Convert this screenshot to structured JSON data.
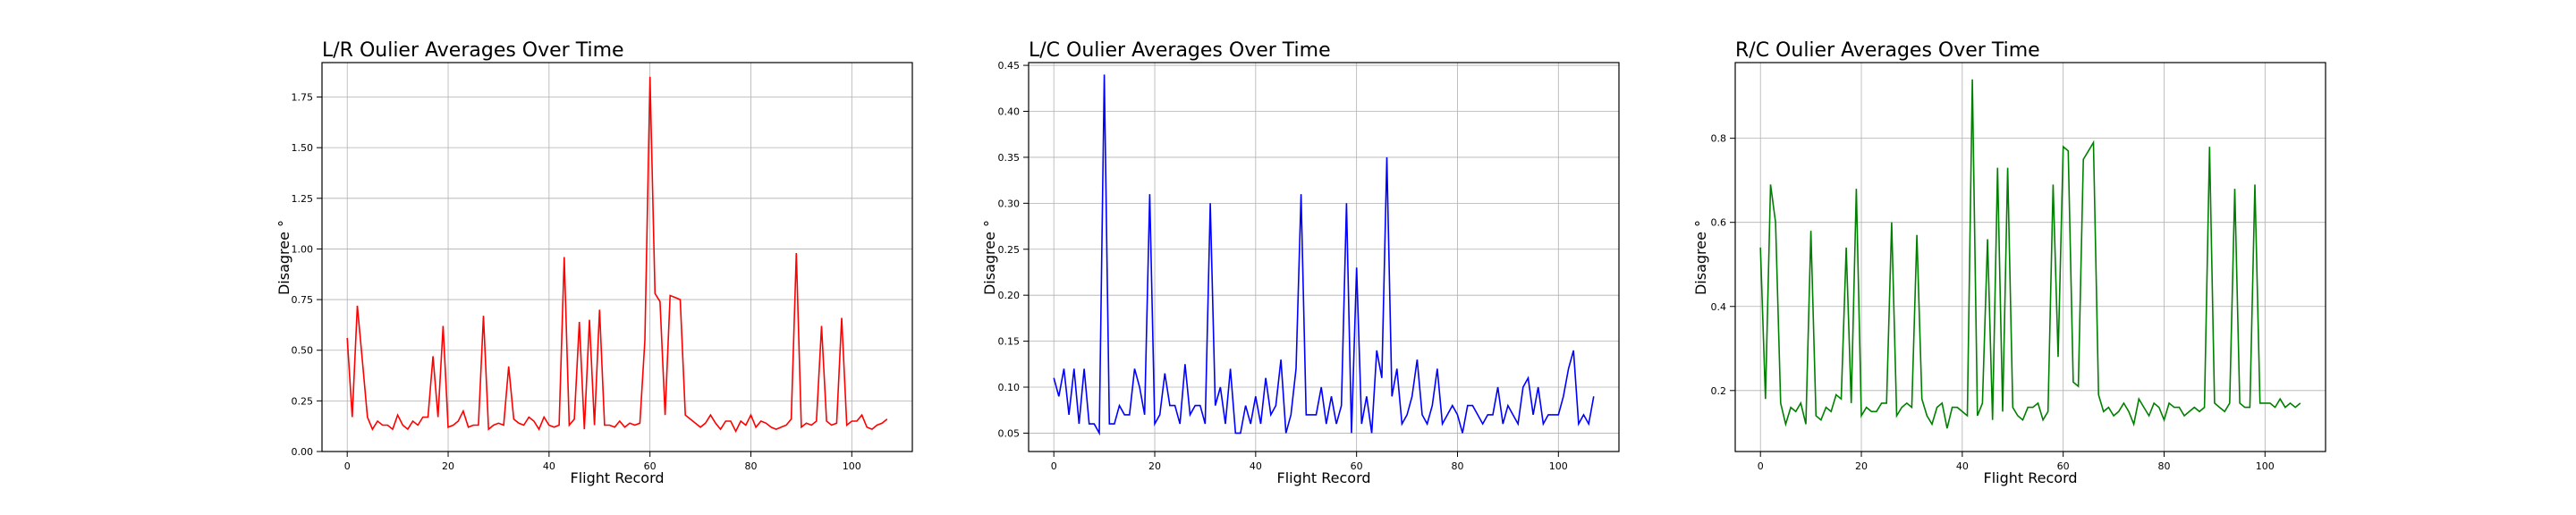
{
  "chart_data": [
    {
      "type": "line",
      "title": "L/R Oulier Averages Over Time",
      "xlabel": "Flight Record",
      "ylabel": "Disagree °",
      "xlim": [
        -5,
        112
      ],
      "ylim": [
        0,
        1.92
      ],
      "xticks": [
        0,
        20,
        40,
        60,
        80,
        100
      ],
      "yticks": [
        "0.00",
        "0.25",
        "0.50",
        "0.75",
        "1.00",
        "1.25",
        "1.50",
        "1.75"
      ],
      "grid": true,
      "legend": "none",
      "series": [
        {
          "color": "#ff0000",
          "x": [
            0,
            1,
            2,
            3,
            4,
            5,
            6,
            7,
            8,
            9,
            10,
            11,
            12,
            13,
            14,
            15,
            16,
            17,
            18,
            19,
            20,
            21,
            22,
            23,
            24,
            25,
            26,
            27,
            28,
            29,
            30,
            31,
            32,
            33,
            34,
            35,
            36,
            37,
            38,
            39,
            40,
            41,
            42,
            43,
            44,
            45,
            46,
            47,
            48,
            49,
            50,
            51,
            52,
            53,
            54,
            55,
            56,
            57,
            58,
            59,
            60,
            61,
            62,
            63,
            64,
            65,
            66,
            67,
            68,
            69,
            70,
            71,
            72,
            73,
            74,
            75,
            76,
            77,
            78,
            79,
            80,
            81,
            82,
            83,
            84,
            85,
            86,
            87,
            88,
            89,
            90,
            91,
            92,
            93,
            94,
            95,
            96,
            97,
            98,
            99,
            100,
            101,
            102,
            103,
            104,
            105,
            106,
            107
          ],
          "y": [
            0.56,
            0.17,
            0.72,
            0.45,
            0.17,
            0.11,
            0.15,
            0.13,
            0.13,
            0.11,
            0.18,
            0.13,
            0.11,
            0.15,
            0.13,
            0.17,
            0.17,
            0.47,
            0.17,
            0.62,
            0.12,
            0.13,
            0.15,
            0.2,
            0.12,
            0.13,
            0.13,
            0.67,
            0.11,
            0.13,
            0.14,
            0.13,
            0.42,
            0.16,
            0.14,
            0.13,
            0.17,
            0.15,
            0.11,
            0.17,
            0.13,
            0.12,
            0.13,
            0.96,
            0.13,
            0.16,
            0.64,
            0.11,
            0.65,
            0.13,
            0.7,
            0.13,
            0.13,
            0.12,
            0.15,
            0.12,
            0.14,
            0.13,
            0.14,
            0.55,
            1.85,
            0.78,
            0.74,
            0.18,
            0.77,
            0.76,
            0.75,
            0.18,
            0.16,
            0.14,
            0.12,
            0.14,
            0.18,
            0.14,
            0.11,
            0.15,
            0.15,
            0.1,
            0.15,
            0.13,
            0.18,
            0.12,
            0.15,
            0.14,
            0.12,
            0.11,
            0.12,
            0.13,
            0.16,
            0.98,
            0.12,
            0.14,
            0.13,
            0.15,
            0.62,
            0.15,
            0.13,
            0.14,
            0.66,
            0.13,
            0.15,
            0.15,
            0.18,
            0.12,
            0.11,
            0.13,
            0.14,
            0.16
          ]
        }
      ]
    },
    {
      "type": "line",
      "title": "L/C Oulier Averages Over Time",
      "xlabel": "Flight Record",
      "ylabel": "Disagree °",
      "xlim": [
        -5,
        112
      ],
      "ylim": [
        0.03,
        0.453
      ],
      "xticks": [
        0,
        20,
        40,
        60,
        80,
        100
      ],
      "yticks": [
        "0.05",
        "0.10",
        "0.15",
        "0.20",
        "0.25",
        "0.30",
        "0.35",
        "0.40",
        "0.45"
      ],
      "grid": true,
      "legend": "none",
      "series": [
        {
          "color": "#0000ff",
          "x": [
            0,
            1,
            2,
            3,
            4,
            5,
            6,
            7,
            8,
            9,
            10,
            11,
            12,
            13,
            14,
            15,
            16,
            17,
            18,
            19,
            20,
            21,
            22,
            23,
            24,
            25,
            26,
            27,
            28,
            29,
            30,
            31,
            32,
            33,
            34,
            35,
            36,
            37,
            38,
            39,
            40,
            41,
            42,
            43,
            44,
            45,
            46,
            47,
            48,
            49,
            50,
            51,
            52,
            53,
            54,
            55,
            56,
            57,
            58,
            59,
            60,
            61,
            62,
            63,
            64,
            65,
            66,
            67,
            68,
            69,
            70,
            71,
            72,
            73,
            74,
            75,
            76,
            77,
            78,
            79,
            80,
            81,
            82,
            83,
            84,
            85,
            86,
            87,
            88,
            89,
            90,
            91,
            92,
            93,
            94,
            95,
            96,
            97,
            98,
            99,
            100,
            101,
            102,
            103,
            104,
            105,
            106,
            107
          ],
          "y": [
            0.11,
            0.09,
            0.12,
            0.07,
            0.12,
            0.06,
            0.12,
            0.06,
            0.06,
            0.05,
            0.44,
            0.06,
            0.06,
            0.08,
            0.07,
            0.07,
            0.12,
            0.1,
            0.07,
            0.31,
            0.06,
            0.07,
            0.115,
            0.08,
            0.08,
            0.06,
            0.125,
            0.07,
            0.08,
            0.08,
            0.06,
            0.3,
            0.08,
            0.1,
            0.06,
            0.12,
            0.05,
            0.05,
            0.08,
            0.06,
            0.09,
            0.06,
            0.11,
            0.07,
            0.08,
            0.13,
            0.05,
            0.07,
            0.12,
            0.31,
            0.07,
            0.07,
            0.07,
            0.1,
            0.06,
            0.09,
            0.06,
            0.08,
            0.3,
            0.05,
            0.23,
            0.06,
            0.09,
            0.05,
            0.14,
            0.11,
            0.35,
            0.09,
            0.12,
            0.06,
            0.07,
            0.09,
            0.13,
            0.07,
            0.06,
            0.08,
            0.12,
            0.06,
            0.07,
            0.08,
            0.07,
            0.05,
            0.08,
            0.08,
            0.07,
            0.06,
            0.07,
            0.07,
            0.1,
            0.06,
            0.08,
            0.07,
            0.06,
            0.1,
            0.11,
            0.07,
            0.1,
            0.06,
            0.07,
            0.07,
            0.07,
            0.09,
            0.12,
            0.14,
            0.06,
            0.07,
            0.06,
            0.09
          ]
        }
      ]
    },
    {
      "type": "line",
      "title": "R/C Oulier Averages Over Time",
      "xlabel": "Flight Record",
      "ylabel": "Disagree °",
      "xlim": [
        -5,
        112
      ],
      "ylim": [
        0.055,
        0.98
      ],
      "xticks": [
        0,
        20,
        40,
        60,
        80,
        100
      ],
      "yticks": [
        "0.2",
        "0.4",
        "0.6",
        "0.8"
      ],
      "grid": true,
      "legend": "none",
      "series": [
        {
          "color": "#008000",
          "x": [
            0,
            1,
            2,
            3,
            4,
            5,
            6,
            7,
            8,
            9,
            10,
            11,
            12,
            13,
            14,
            15,
            16,
            17,
            18,
            19,
            20,
            21,
            22,
            23,
            24,
            25,
            26,
            27,
            28,
            29,
            30,
            31,
            32,
            33,
            34,
            35,
            36,
            37,
            38,
            39,
            40,
            41,
            42,
            43,
            44,
            45,
            46,
            47,
            48,
            49,
            50,
            51,
            52,
            53,
            54,
            55,
            56,
            57,
            58,
            59,
            60,
            61,
            62,
            63,
            64,
            65,
            66,
            67,
            68,
            69,
            70,
            71,
            72,
            73,
            74,
            75,
            76,
            77,
            78,
            79,
            80,
            81,
            82,
            83,
            84,
            85,
            86,
            87,
            88,
            89,
            90,
            91,
            92,
            93,
            94,
            95,
            96,
            97,
            98,
            99,
            100,
            101,
            102,
            103,
            104,
            105,
            106,
            107
          ],
          "y": [
            0.54,
            0.18,
            0.69,
            0.6,
            0.17,
            0.12,
            0.16,
            0.15,
            0.17,
            0.12,
            0.58,
            0.14,
            0.13,
            0.16,
            0.15,
            0.19,
            0.18,
            0.54,
            0.17,
            0.68,
            0.14,
            0.16,
            0.15,
            0.15,
            0.17,
            0.17,
            0.6,
            0.14,
            0.16,
            0.17,
            0.16,
            0.57,
            0.18,
            0.14,
            0.12,
            0.16,
            0.17,
            0.11,
            0.16,
            0.16,
            0.15,
            0.14,
            0.94,
            0.14,
            0.17,
            0.56,
            0.13,
            0.73,
            0.15,
            0.73,
            0.16,
            0.14,
            0.13,
            0.16,
            0.16,
            0.17,
            0.13,
            0.15,
            0.69,
            0.28,
            0.78,
            0.77,
            0.22,
            0.21,
            0.75,
            0.77,
            0.79,
            0.19,
            0.15,
            0.16,
            0.14,
            0.15,
            0.17,
            0.15,
            0.12,
            0.18,
            0.16,
            0.14,
            0.17,
            0.16,
            0.13,
            0.17,
            0.16,
            0.16,
            0.14,
            0.15,
            0.16,
            0.15,
            0.16,
            0.78,
            0.17,
            0.16,
            0.15,
            0.17,
            0.68,
            0.17,
            0.16,
            0.16,
            0.69,
            0.17,
            0.17,
            0.17,
            0.16,
            0.18,
            0.16,
            0.17,
            0.16,
            0.17
          ]
        }
      ]
    }
  ]
}
